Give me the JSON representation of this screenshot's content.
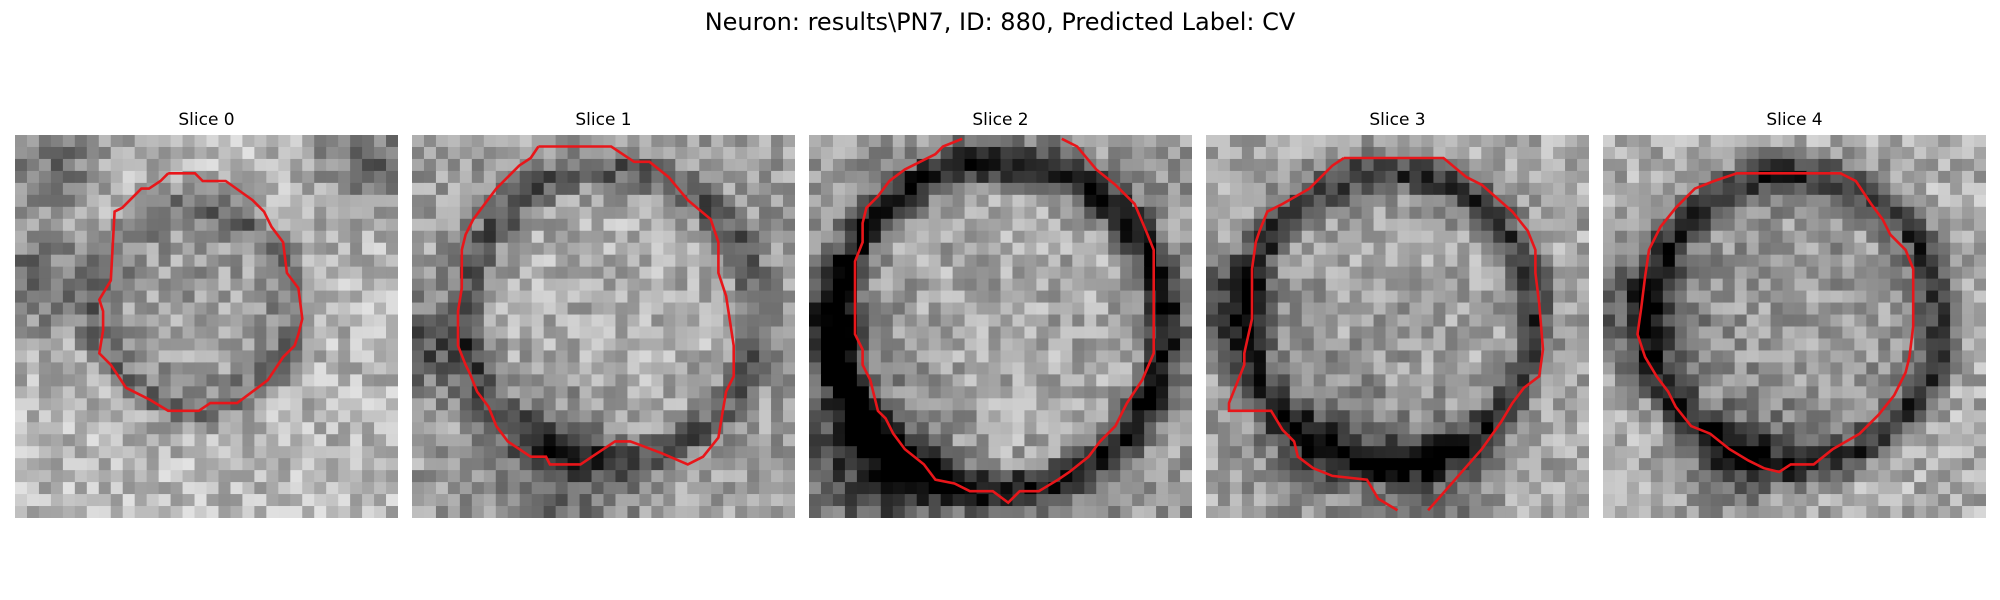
{
  "figure": {
    "title": "Neuron: results\\PN7, ID: 880, Predicted Label: CV"
  },
  "panels": [
    {
      "title": "Slice 0"
    },
    {
      "title": "Slice 1"
    },
    {
      "title": "Slice 2"
    },
    {
      "title": "Slice 3"
    },
    {
      "title": "Slice 4"
    }
  ],
  "colors": {
    "contour": "#e8161a",
    "background": "#ffffff"
  }
}
